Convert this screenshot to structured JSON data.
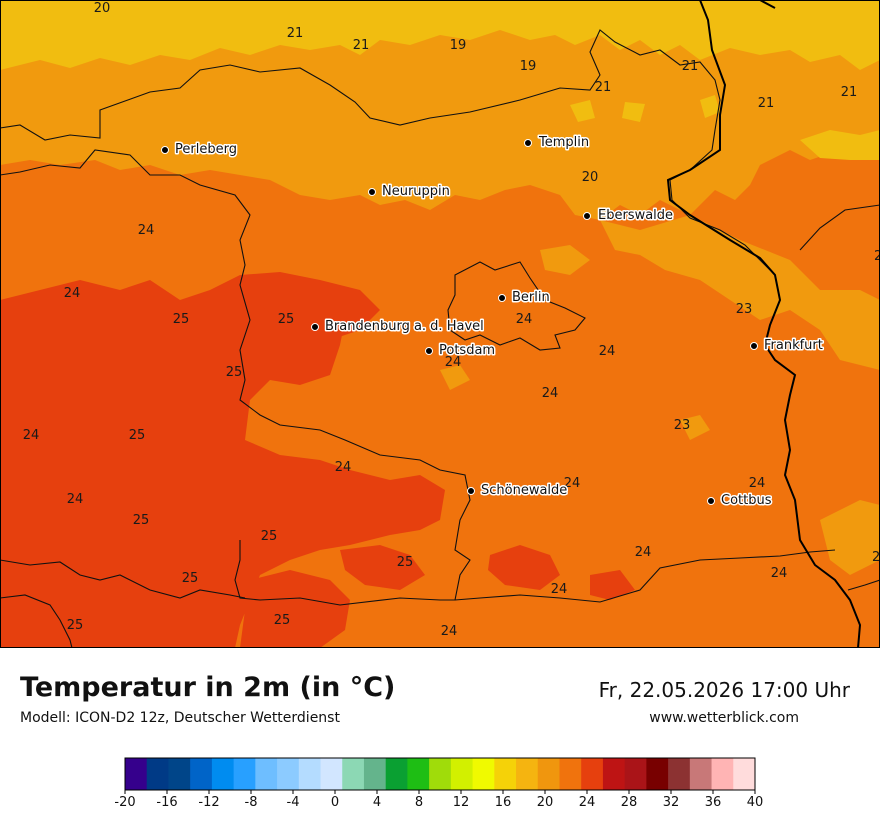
{
  "header": {
    "title": "Temperatur in 2m (in °C)",
    "model": "Modell: ICON-D2 12z, Deutscher Wetterdienst",
    "datetime": "Fr, 22.05.2026 17:00 Uhr",
    "website": "www.wetterblick.com"
  },
  "colors": {
    "t19": "#f1bd10",
    "t21": "#f19a0e",
    "t23": "#f0730d",
    "t25": "#e6400e",
    "border": "#111111"
  },
  "cities": [
    {
      "name": "Perleberg"
    },
    {
      "name": "Templin"
    },
    {
      "name": "Neuruppin"
    },
    {
      "name": "Eberswalde"
    },
    {
      "name": "Berlin"
    },
    {
      "name": "Brandenburg a. d. Havel"
    },
    {
      "name": "Potsdam"
    },
    {
      "name": "Frankfurt"
    },
    {
      "name": "Schönewalde"
    },
    {
      "name": "Cottbus"
    }
  ],
  "values": [
    "20",
    "21",
    "21",
    "19",
    "19",
    "21",
    "21",
    "21",
    "21",
    "20",
    "24",
    "24",
    "25",
    "25",
    "25",
    "24",
    "24",
    "24",
    "24",
    "24",
    "25",
    "24",
    "24",
    "24",
    "23",
    "23",
    "24",
    "24",
    "25",
    "25",
    "25",
    "24",
    "24",
    "25",
    "24",
    "24",
    "25"
  ],
  "legend": {
    "ticks": [
      "-20",
      "-16",
      "-12",
      "-8",
      "-4",
      "0",
      "4",
      "8",
      "12",
      "16",
      "20",
      "24",
      "28",
      "32",
      "36",
      "40"
    ],
    "colors": [
      "#35008c",
      "#003a86",
      "#004589",
      "#0064c8",
      "#008cf0",
      "#28a0ff",
      "#6ebeff",
      "#8ccbff",
      "#b4dcff",
      "#d2e6ff",
      "#8cd8b4",
      "#64b48c",
      "#0aa032",
      "#1ebe14",
      "#a0dc0a",
      "#d2f000",
      "#f0fa00",
      "#f5d208",
      "#f5b410",
      "#f0960e",
      "#f0730d",
      "#e6400e",
      "#be1414",
      "#aa1418",
      "#780000",
      "#8c3232",
      "#c87878",
      "#ffb4b4",
      "#ffdcdc"
    ]
  }
}
